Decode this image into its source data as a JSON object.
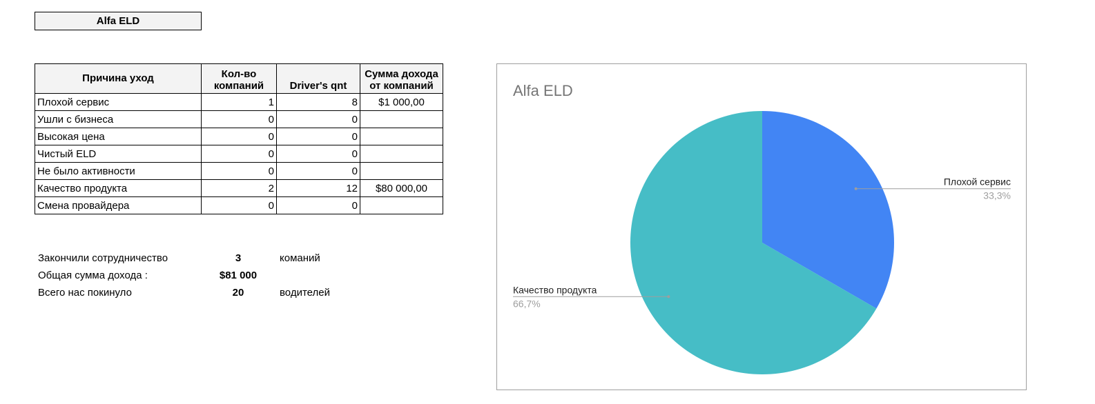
{
  "sheet_title": "Alfa ELD",
  "table": {
    "headers": [
      "Причина уход",
      "Кол-во компаний",
      "Driver's qnt",
      "Сумма дохода от компаний"
    ],
    "rows": [
      [
        "Плохой сервис",
        "1",
        "8",
        "$1 000,00"
      ],
      [
        "Ушли с бизнеса",
        "0",
        "0",
        ""
      ],
      [
        "Высокая цена",
        "0",
        "0",
        ""
      ],
      [
        "Чистый ELD",
        "0",
        "0",
        ""
      ],
      [
        "Не было активности",
        "0",
        "0",
        ""
      ],
      [
        "Качество продукта",
        "2",
        "12",
        "$80 000,00"
      ],
      [
        "Смена провайдера",
        "0",
        "0",
        ""
      ]
    ]
  },
  "summary": [
    {
      "label": "Закончили сотрудничество",
      "value": "3",
      "unit": "команий"
    },
    {
      "label": "Общая сумма дохода :",
      "value": "$81 000",
      "unit": ""
    },
    {
      "label": "Всего нас покинуло",
      "value": "20",
      "unit": "водителей"
    }
  ],
  "chart_data": {
    "type": "pie",
    "title": "Alfa ELD",
    "categories": [
      "Плохой сервис",
      "Качество продукта"
    ],
    "values": [
      1,
      2
    ],
    "percent_labels": [
      "33,3%",
      "66,7%"
    ],
    "colors": [
      "#4285f4",
      "#46bdc6"
    ],
    "legend": "none"
  }
}
